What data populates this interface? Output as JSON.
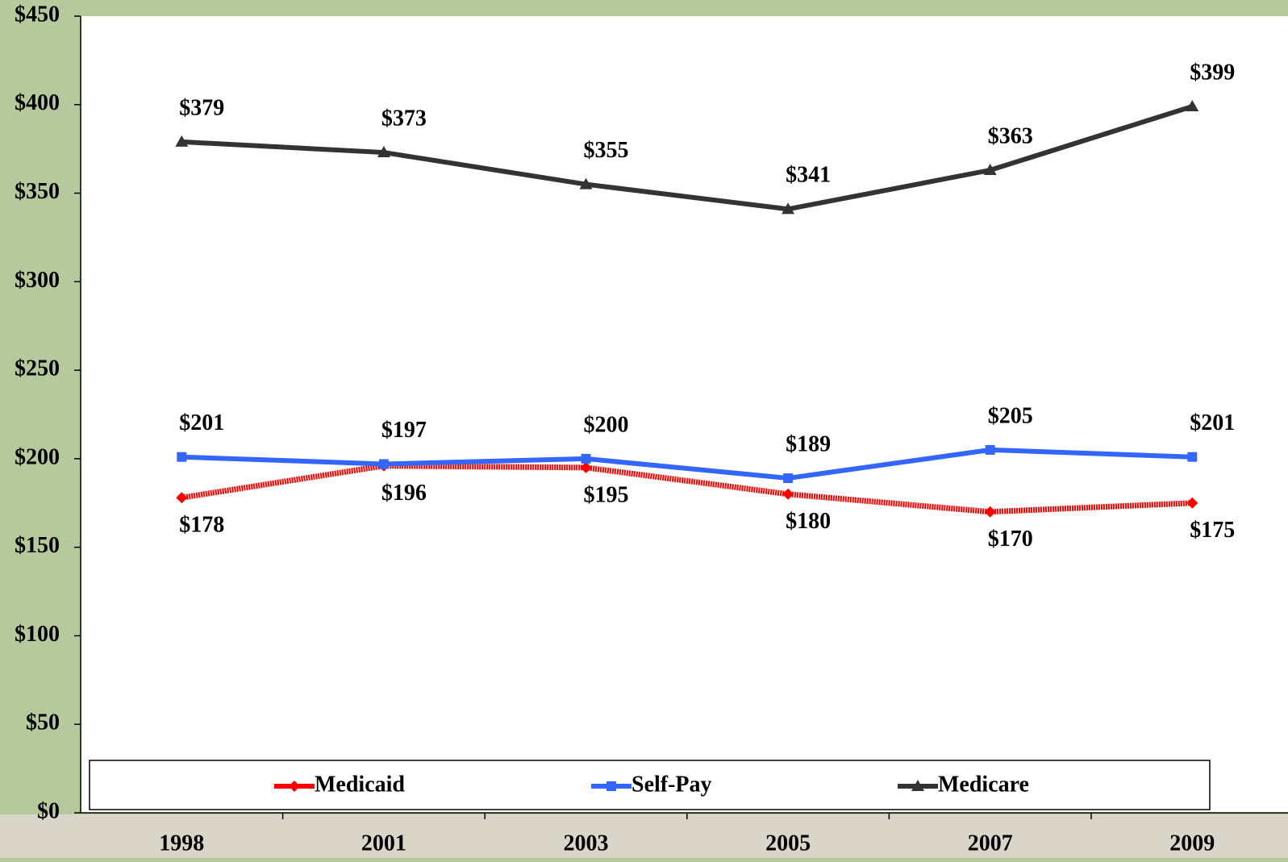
{
  "chart_data": {
    "type": "line",
    "categories": [
      "1998",
      "2001",
      "2003",
      "2005",
      "2007",
      "2009"
    ],
    "series": [
      {
        "name": "Medicaid",
        "color": "#ff0000",
        "values": [
          178,
          196,
          195,
          180,
          170,
          175
        ],
        "value_labels": [
          "$178",
          "$196",
          "$195",
          "$180",
          "$170",
          "$175"
        ]
      },
      {
        "name": "Self-Pay",
        "color": "#3366ff",
        "values": [
          201,
          197,
          200,
          189,
          205,
          201
        ],
        "value_labels": [
          "$201",
          "$197",
          "$200",
          "$189",
          "$205",
          "$201"
        ]
      },
      {
        "name": "Medicare",
        "color": "#333333",
        "values": [
          379,
          373,
          355,
          341,
          363,
          399
        ],
        "value_labels": [
          "$379",
          "$373",
          "$355",
          "$341",
          "$363",
          "$399"
        ]
      }
    ],
    "ylim": [
      0,
      450
    ],
    "yticks": [
      {
        "value": 0,
        "label": "$0"
      },
      {
        "value": 50,
        "label": "$50"
      },
      {
        "value": 100,
        "label": "$100"
      },
      {
        "value": 150,
        "label": "$150"
      },
      {
        "value": 200,
        "label": "$200"
      },
      {
        "value": 250,
        "label": "$250"
      },
      {
        "value": 300,
        "label": "$300"
      },
      {
        "value": 350,
        "label": "$350"
      },
      {
        "value": 400,
        "label": "$400"
      },
      {
        "value": 450,
        "label": "$450"
      }
    ],
    "grid": false,
    "legend": "bottom"
  }
}
